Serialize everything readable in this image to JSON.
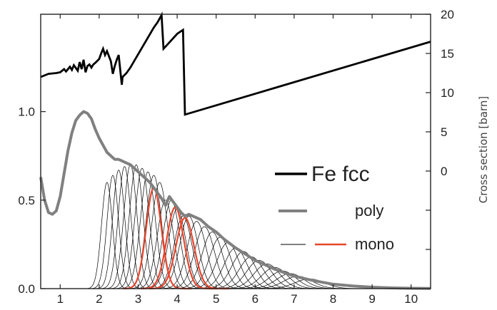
{
  "chart_data": {
    "type": "line",
    "title": "",
    "xlabel": "",
    "ylabel_left": "",
    "ylabel_right": "Cross section [barn]",
    "xlim": [
      0.5,
      10.5
    ],
    "ylim_left": [
      0,
      1.55
    ],
    "ylim_right": [
      -15,
      20
    ],
    "x_ticks": [
      "1",
      "2",
      "3",
      "4",
      "5",
      "6",
      "7",
      "8",
      "9",
      "10"
    ],
    "y_left_ticks": [
      "0.0",
      "0.5",
      "1.0"
    ],
    "y_right_ticks": [
      "0",
      "5",
      "10",
      "15",
      "20"
    ],
    "legend": {
      "fe": "Fe fcc",
      "poly": "poly",
      "mono": "mono"
    },
    "colors": {
      "fe": "#000000",
      "poly": "#808080",
      "mono": "#000000",
      "mono_highlight": "#e8452c"
    },
    "series": [
      {
        "name": "Fe fcc",
        "axis": "right",
        "x": [
          0.5,
          0.7,
          0.9,
          1.0,
          1.1,
          1.15,
          1.25,
          1.3,
          1.35,
          1.45,
          1.5,
          1.55,
          1.6,
          1.65,
          1.7,
          1.75,
          1.8,
          1.85,
          1.9,
          2.0,
          2.05,
          2.1,
          2.15,
          2.2,
          2.3,
          2.35,
          2.4,
          2.45,
          2.5,
          2.58,
          2.6,
          2.7,
          2.8,
          3.0,
          3.2,
          3.4,
          3.5,
          3.6,
          3.65,
          3.8,
          4.0,
          4.15,
          4.2,
          10.5
        ],
        "y": [
          12.0,
          12.4,
          12.5,
          12.6,
          13.0,
          12.7,
          13.3,
          12.9,
          13.5,
          12.8,
          13.9,
          13.0,
          14.2,
          12.6,
          13.4,
          13.6,
          13.2,
          13.6,
          13.8,
          14.3,
          15.0,
          15.6,
          14.8,
          15.3,
          14.0,
          12.4,
          13.4,
          14.2,
          14.8,
          11.0,
          12.0,
          12.5,
          13.2,
          14.9,
          16.6,
          18.3,
          19.0,
          19.9,
          15.6,
          16.4,
          17.5,
          18.0,
          7.2,
          16.5
        ]
      },
      {
        "name": "poly",
        "axis": "left",
        "x": [
          0.5,
          0.6,
          0.7,
          0.8,
          0.9,
          1.0,
          1.1,
          1.2,
          1.3,
          1.4,
          1.5,
          1.6,
          1.7,
          1.8,
          1.9,
          2.0,
          2.1,
          2.2,
          2.3,
          2.4,
          2.5,
          2.6,
          2.7,
          2.8,
          2.9,
          3.0,
          3.1,
          3.2,
          3.3,
          3.4,
          3.5,
          3.6,
          3.7,
          3.8,
          3.9,
          4.0,
          4.1,
          4.2,
          4.3,
          4.4,
          4.6,
          4.8,
          5.0,
          5.2,
          5.5,
          6.0,
          6.5,
          7.0,
          7.5,
          8.0,
          8.5,
          9.0,
          9.5,
          10.0,
          10.5
        ],
        "y": [
          0.63,
          0.5,
          0.43,
          0.42,
          0.44,
          0.52,
          0.65,
          0.78,
          0.88,
          0.95,
          0.98,
          1.0,
          0.99,
          0.96,
          0.9,
          0.85,
          0.81,
          0.77,
          0.75,
          0.73,
          0.73,
          0.72,
          0.71,
          0.7,
          0.68,
          0.66,
          0.64,
          0.62,
          0.6,
          0.57,
          0.54,
          0.51,
          0.47,
          0.52,
          0.49,
          0.46,
          0.43,
          0.41,
          0.42,
          0.41,
          0.39,
          0.35,
          0.32,
          0.28,
          0.23,
          0.16,
          0.11,
          0.07,
          0.045,
          0.025,
          0.015,
          0.008,
          0.004,
          0.002,
          0.001
        ]
      },
      {
        "name": "mono",
        "axis": "left",
        "center_x": [
          2.2,
          2.35,
          2.5,
          2.65,
          2.8,
          2.95,
          3.1,
          3.25,
          3.4,
          3.55,
          3.7,
          3.85,
          4.0,
          4.15,
          4.3,
          4.5,
          4.7,
          4.9,
          5.1,
          5.3,
          5.5,
          5.7,
          5.9,
          6.1,
          6.3,
          6.5,
          6.7,
          6.9,
          7.1,
          7.4
        ],
        "peak_y": [
          0.6,
          0.64,
          0.67,
          0.69,
          0.7,
          0.7,
          0.68,
          0.66,
          0.64,
          0.6,
          0.5,
          0.5,
          0.45,
          0.41,
          0.41,
          0.38,
          0.35,
          0.32,
          0.29,
          0.26,
          0.23,
          0.21,
          0.18,
          0.16,
          0.14,
          0.12,
          0.1,
          0.085,
          0.07,
          0.055
        ],
        "highlighted_center_x": [
          3.4,
          3.95,
          4.2
        ],
        "highlighted_peak_y": [
          0.57,
          0.46,
          0.4
        ]
      }
    ],
    "grid": false,
    "legend_position": "right"
  }
}
